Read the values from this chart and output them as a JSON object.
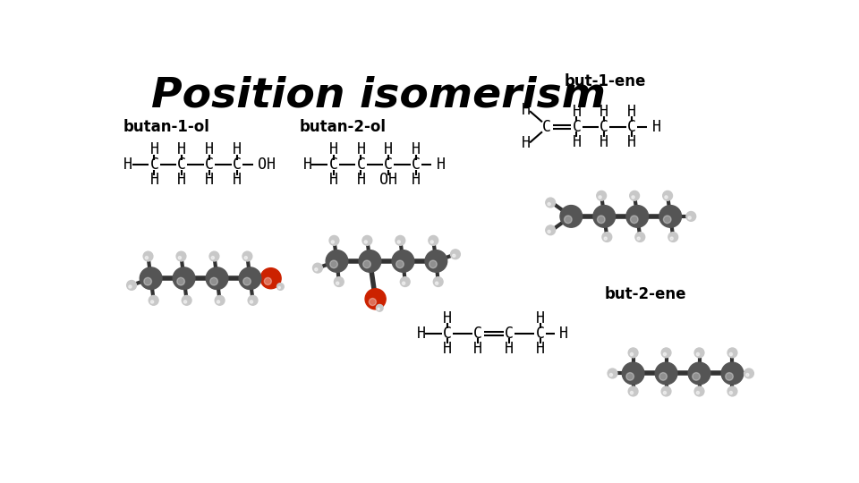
{
  "title": "Position isomerism",
  "bg_color": "#ffffff",
  "title_fontsize": 34,
  "label_fontsize": 12,
  "struct_fontsize": 12,
  "label_butan1ol": "butan-1-ol",
  "label_butan2ol": "butan-2-ol",
  "label_but1ene": "but-1-ene",
  "label_but2ene": "but-2-ene",
  "dark_gray": "#555555",
  "mid_gray": "#888888",
  "light_gray": "#c8c8c8",
  "red_color": "#cc2200",
  "bond_color": "#333333"
}
